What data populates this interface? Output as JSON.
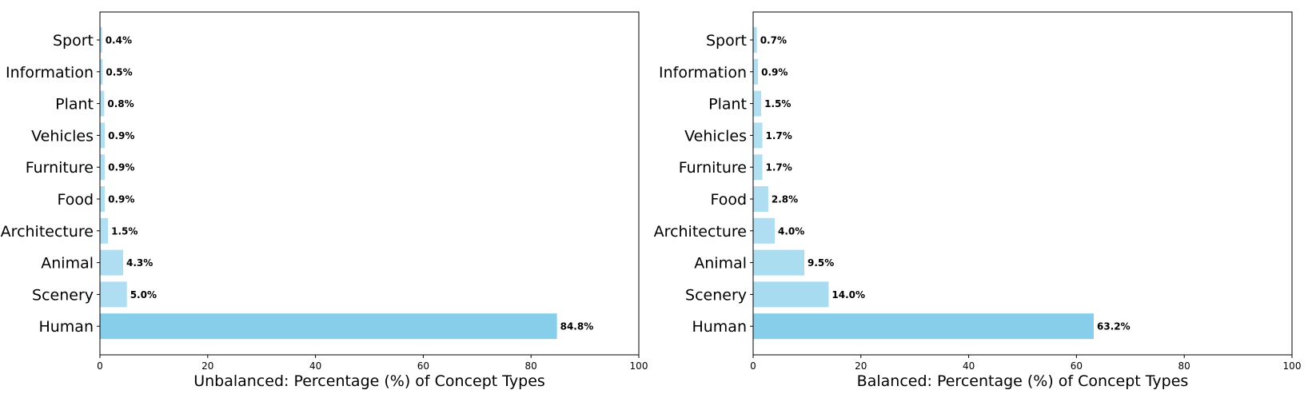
{
  "chart_data": [
    {
      "type": "bar",
      "orientation": "horizontal",
      "xlabel": "Unbalanced: Percentage (%) of Concept Types",
      "xlim": [
        0,
        100
      ],
      "xticks": [
        "0",
        "20",
        "40",
        "60",
        "80",
        "100"
      ],
      "categories": [
        "Sport",
        "Information",
        "Plant",
        "Vehicles",
        "Furniture",
        "Food",
        "Architecture",
        "Animal",
        "Scenery",
        "Human"
      ],
      "values": [
        0.4,
        0.5,
        0.8,
        0.9,
        0.9,
        0.9,
        1.5,
        4.3,
        5.0,
        84.8
      ],
      "data_labels": [
        "0.4%",
        "0.5%",
        "0.8%",
        "0.9%",
        "0.9%",
        "0.9%",
        "1.5%",
        "4.3%",
        "5.0%",
        "84.8%"
      ],
      "bar_color": "#87CEEB",
      "grid": false
    },
    {
      "type": "bar",
      "orientation": "horizontal",
      "xlabel": "Balanced: Percentage (%) of Concept Types",
      "xlim": [
        0,
        100
      ],
      "xticks": [
        "0",
        "20",
        "40",
        "60",
        "80",
        "100"
      ],
      "categories": [
        "Sport",
        "Information",
        "Plant",
        "Vehicles",
        "Furniture",
        "Food",
        "Architecture",
        "Animal",
        "Scenery",
        "Human"
      ],
      "values": [
        0.7,
        0.9,
        1.5,
        1.7,
        1.7,
        2.8,
        4.0,
        9.5,
        14.0,
        63.2
      ],
      "data_labels": [
        "0.7%",
        "0.9%",
        "1.5%",
        "1.7%",
        "1.7%",
        "2.8%",
        "4.0%",
        "9.5%",
        "14.0%",
        "63.2%"
      ],
      "bar_color": "#87CEEB",
      "grid": false
    }
  ]
}
